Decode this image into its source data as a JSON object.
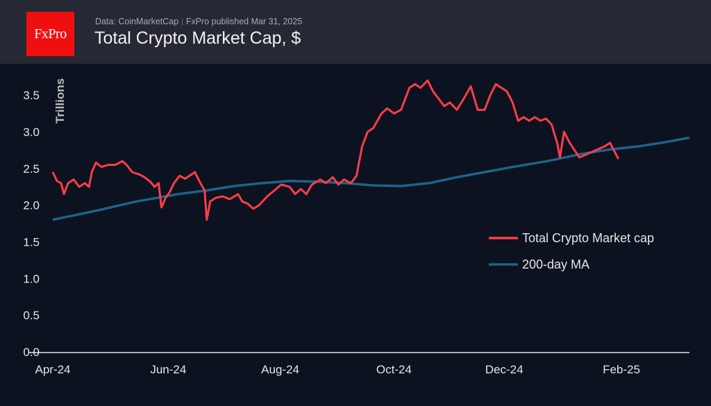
{
  "header": {
    "logo": "FxPro",
    "source": "Data: CoinMarketCap",
    "published": "FxPro published Mar 31, 2025",
    "title": "Total Crypto Market Cap, $"
  },
  "colors": {
    "market_cap": "#ff3d48",
    "ma": "#1c6489",
    "background": "#0c1220",
    "header": "#262833"
  },
  "chart_data": {
    "type": "line",
    "title": "Total Crypto Market Cap, $",
    "ylabel": "Trillions",
    "xlabel": "",
    "ylim": [
      0,
      3.75
    ],
    "yticks": [
      "0.0",
      "0.5",
      "1.0",
      "1.5",
      "2.0",
      "2.5",
      "3.0",
      "3.5"
    ],
    "ytick_values": [
      0,
      0.5,
      1,
      1.5,
      2,
      2.5,
      3,
      3.5
    ],
    "xlim_days": [
      0,
      364
    ],
    "xticks": [
      {
        "label": "Apr-24",
        "day": 0
      },
      {
        "label": "Jun-24",
        "day": 66
      },
      {
        "label": "Aug-24",
        "day": 130
      },
      {
        "label": "Oct-24",
        "day": 195
      },
      {
        "label": "Dec-24",
        "day": 258
      },
      {
        "label": "Feb-25",
        "day": 325
      }
    ],
    "legend_position": "right-middle",
    "x_unit": "days since 2024-04-01",
    "series": [
      {
        "name": "Total Crypto Market cap",
        "color_key": "market_cap",
        "points": [
          [
            0,
            2.45
          ],
          [
            3,
            2.33
          ],
          [
            6,
            2.3
          ],
          [
            8,
            2.15
          ],
          [
            11,
            2.3
          ],
          [
            15,
            2.35
          ],
          [
            19,
            2.25
          ],
          [
            23,
            2.3
          ],
          [
            26,
            2.25
          ],
          [
            28,
            2.45
          ],
          [
            31,
            2.58
          ],
          [
            35,
            2.52
          ],
          [
            40,
            2.55
          ],
          [
            45,
            2.55
          ],
          [
            50,
            2.6
          ],
          [
            53,
            2.55
          ],
          [
            57,
            2.45
          ],
          [
            62,
            2.42
          ],
          [
            66,
            2.38
          ],
          [
            70,
            2.32
          ],
          [
            73,
            2.25
          ],
          [
            76,
            2.28
          ],
          [
            73,
            2.25
          ],
          [
            77,
            2.3
          ],
          [
            80,
            2.28
          ],
          [
            76,
            2.28
          ]
        ]
      },
      {
        "name": "200-day MA",
        "color_key": "ma",
        "points": [
          [
            0,
            1.8
          ],
          [
            30,
            1.92
          ],
          [
            60,
            2.05
          ],
          [
            90,
            2.15
          ],
          [
            110,
            2.2
          ],
          [
            130,
            2.26
          ],
          [
            150,
            2.3
          ],
          [
            170,
            2.33
          ],
          [
            190,
            2.32
          ],
          [
            210,
            2.3
          ],
          [
            230,
            2.27
          ],
          [
            250,
            2.26
          ],
          [
            270,
            2.3
          ],
          [
            290,
            2.38
          ],
          [
            310,
            2.45
          ],
          [
            330,
            2.52
          ],
          [
            355,
            2.6
          ],
          [
            380,
            2.7
          ],
          [
            400,
            2.76
          ],
          [
            420,
            2.8
          ],
          [
            440,
            2.86
          ],
          [
            457,
            2.92
          ]
        ]
      }
    ]
  }
}
